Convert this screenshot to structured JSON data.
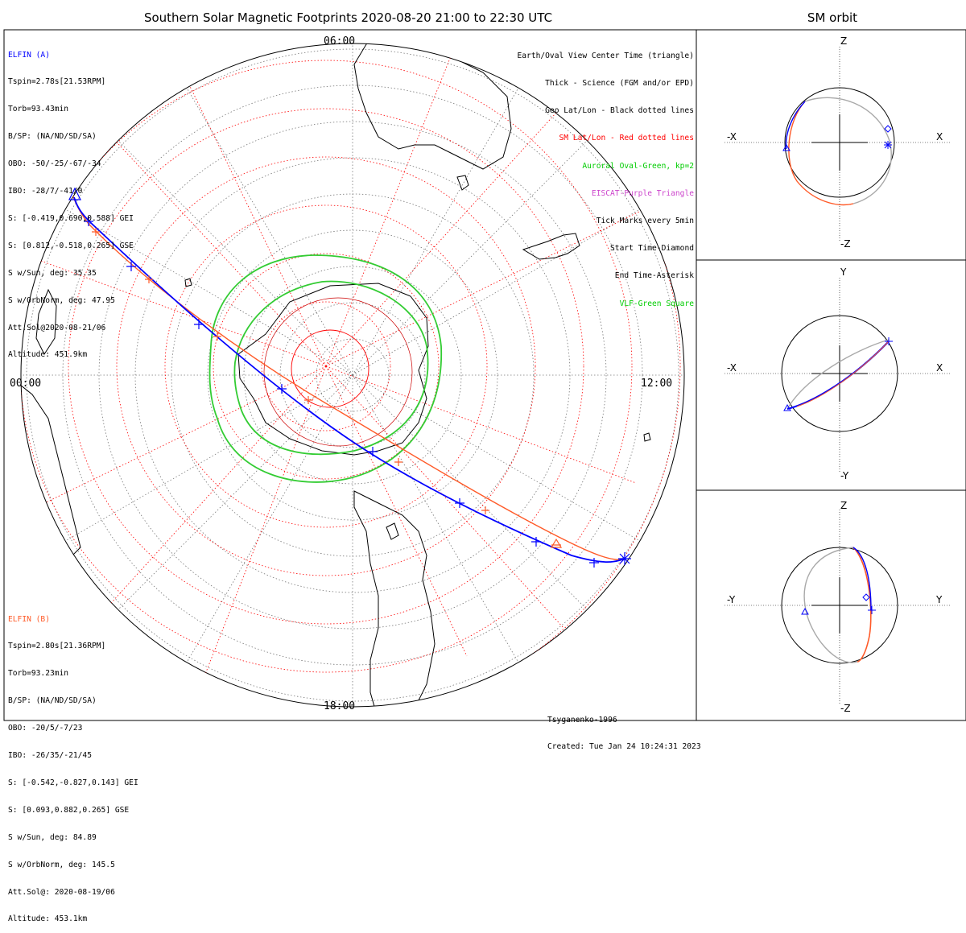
{
  "title": "Southern Solar Magnetic Footprints 2020-08-20 21:00 to 22:30 UTC",
  "orbit_title": "SM orbit",
  "colors": {
    "elfin_a": "#0000ff",
    "elfin_b": "#ff5a28",
    "sm_grid": "#ff0000",
    "auroral_oval": "#00cc00",
    "eiscat": "#cc44cc",
    "vlf": "#00cc00",
    "orbit_gray": "#a9a9a9"
  },
  "elfin_a": {
    "header": "ELFIN (A)",
    "lines": [
      "Tspin=2.78s[21.53RPM]",
      "Torb=93.43min",
      "B/SP: (NA/ND/SD/SA)",
      "OBO: -50/-25/-67/-34",
      "IBO: -28/7/-41/0",
      "S: [-0.419,0.690,0.588] GEI",
      "S: [0.812,-0.518,0.265] GSE",
      "S w/Sun, deg: 35.35",
      "S w/OrbNorm, deg: 47.95",
      "Att.Sol@2020-08-21/06",
      "Altitude: 451.9km"
    ]
  },
  "elfin_b": {
    "header": "ELFIN (B)",
    "lines": [
      "Tspin=2.80s[21.36RPM]",
      "Torb=93.23min",
      "B/SP: (NA/ND/SD/SA)",
      "OBO: -20/5/-7/23",
      "IBO: -26/35/-21/45",
      "S: [-0.542,-0.827,0.143] GEI",
      "S: [0.093,0.882,0.265] GSE",
      "S w/Sun, deg: 84.89",
      "S w/OrbNorm, deg: 145.5",
      "Att.Sol@: 2020-08-19/06",
      "Altitude: 453.1km"
    ]
  },
  "legend": [
    {
      "text": "Earth/Oval View Center Time (triangle)",
      "color": "#000000"
    },
    {
      "text": "Thick - Science (FGM and/or EPD)",
      "color": "#000000"
    },
    {
      "text": "Geo Lat/Lon - Black dotted lines",
      "color": "#000000"
    },
    {
      "text": "SM Lat/Lon - Red dotted lines",
      "color": "#ff0000"
    },
    {
      "text": "Auroral Oval-Green, kp=2",
      "color": "#00cc00"
    },
    {
      "text": "EISCAT-Purple Triangle",
      "color": "#cc44cc"
    },
    {
      "text": "Tick Marks every 5min",
      "color": "#000000"
    },
    {
      "text": "Start Time-Diamond",
      "color": "#000000"
    },
    {
      "text": "End Time-Asterisk",
      "color": "#000000"
    },
    {
      "text": "VLF-Green Square",
      "color": "#00cc00"
    }
  ],
  "hour_labels": {
    "top": "06:00",
    "left": "00:00",
    "right": "12:00",
    "bottom": "18:00"
  },
  "footer": {
    "model": "Tsyganenko-1996",
    "created": "Created: Tue Jan 24 10:24:31 2023"
  },
  "orbit_panels": [
    {
      "top": "Z",
      "bottom": "-Z",
      "left": "-X",
      "right": "X"
    },
    {
      "top": "Y",
      "bottom": "-Y",
      "left": "-X",
      "right": "X"
    },
    {
      "top": "Z",
      "bottom": "-Z",
      "left": "-Y",
      "right": "Y"
    }
  ]
}
